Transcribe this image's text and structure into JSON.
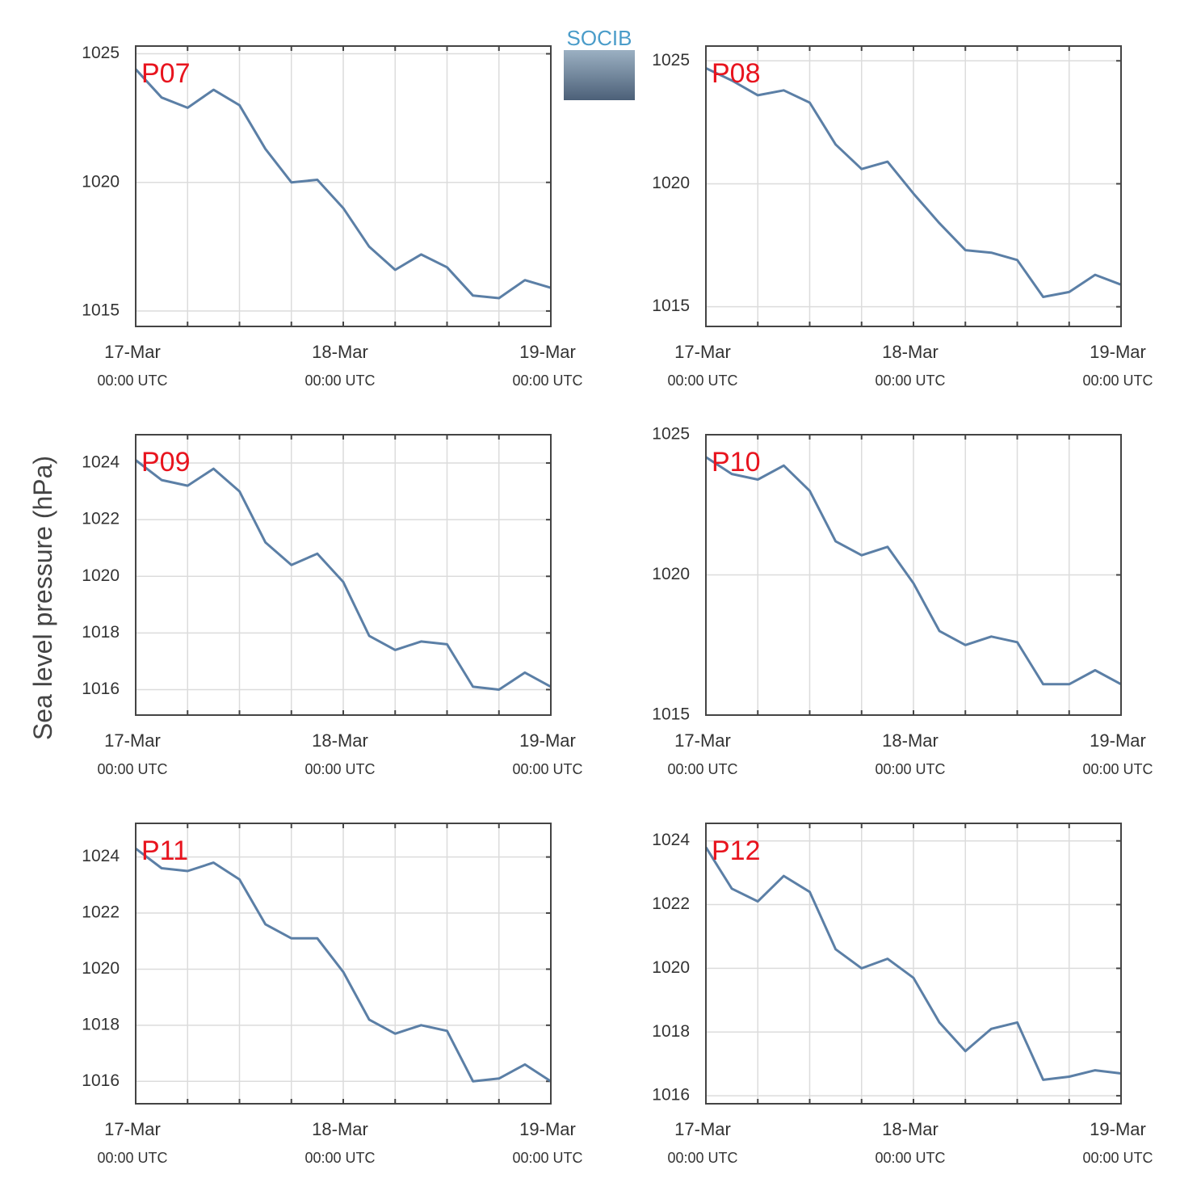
{
  "ylabel": "Sea level pressure (hPa)",
  "logo": "SOCIB",
  "chart_data": [
    {
      "type": "line",
      "title": "P07",
      "color": "#5b7fa6",
      "x": [
        "17-Mar 00:00",
        "17-Mar 03:00",
        "17-Mar 06:00",
        "17-Mar 09:00",
        "17-Mar 12:00",
        "17-Mar 15:00",
        "17-Mar 18:00",
        "17-Mar 21:00",
        "18-Mar 00:00",
        "18-Mar 03:00",
        "18-Mar 06:00",
        "18-Mar 09:00",
        "18-Mar 12:00",
        "18-Mar 15:00",
        "18-Mar 18:00",
        "18-Mar 21:00",
        "19-Mar 00:00"
      ],
      "values": [
        1024.4,
        1023.3,
        1022.9,
        1023.6,
        1023.0,
        1021.3,
        1020.0,
        1020.1,
        1019.0,
        1017.5,
        1016.6,
        1017.2,
        1016.7,
        1015.6,
        1015.5,
        1016.2,
        1015.9
      ],
      "xlim": [
        "17-Mar 00:00",
        "19-Mar 00:00"
      ],
      "xticks": [
        {
          "value": "17-Mar 00:00",
          "label": "17-Mar\n00:00 UTC"
        },
        {
          "value": "17-Mar 06:00",
          "label": null
        },
        {
          "value": "17-Mar 12:00",
          "label": null
        },
        {
          "value": "17-Mar 18:00",
          "label": null
        },
        {
          "value": "18-Mar 00:00",
          "label": "18-Mar\n00:00 UTC"
        },
        {
          "value": "18-Mar 06:00",
          "label": null
        },
        {
          "value": "18-Mar 12:00",
          "label": null
        },
        {
          "value": "18-Mar 18:00",
          "label": null
        },
        {
          "value": "19-Mar 00:00",
          "label": "19-Mar\n00:00 UTC"
        }
      ],
      "ylim": [
        1014.4,
        1025.3
      ],
      "yticks": [
        1015,
        1020,
        1025
      ],
      "grid": true
    },
    {
      "type": "line",
      "title": "P08",
      "color": "#5b7fa6",
      "x": [
        "17-Mar 00:00",
        "17-Mar 03:00",
        "17-Mar 06:00",
        "17-Mar 09:00",
        "17-Mar 12:00",
        "17-Mar 15:00",
        "17-Mar 18:00",
        "17-Mar 21:00",
        "18-Mar 00:00",
        "18-Mar 03:00",
        "18-Mar 06:00",
        "18-Mar 09:00",
        "18-Mar 12:00",
        "18-Mar 15:00",
        "18-Mar 18:00",
        "18-Mar 21:00",
        "19-Mar 00:00"
      ],
      "values": [
        1024.7,
        1024.2,
        1023.6,
        1023.8,
        1023.3,
        1021.6,
        1020.6,
        1020.9,
        1019.6,
        1018.4,
        1017.3,
        1017.2,
        1016.9,
        1015.4,
        1015.6,
        1016.3,
        1015.9
      ],
      "xlim": [
        "17-Mar 00:00",
        "19-Mar 00:00"
      ],
      "xticks": [
        {
          "value": "17-Mar 00:00",
          "label": "17-Mar\n00:00 UTC"
        },
        {
          "value": "17-Mar 06:00",
          "label": null
        },
        {
          "value": "17-Mar 12:00",
          "label": null
        },
        {
          "value": "17-Mar 18:00",
          "label": null
        },
        {
          "value": "18-Mar 00:00",
          "label": "18-Mar\n00:00 UTC"
        },
        {
          "value": "18-Mar 06:00",
          "label": null
        },
        {
          "value": "18-Mar 12:00",
          "label": null
        },
        {
          "value": "18-Mar 18:00",
          "label": null
        },
        {
          "value": "19-Mar 00:00",
          "label": "19-Mar\n00:00 UTC"
        }
      ],
      "ylim": [
        1014.2,
        1025.6
      ],
      "yticks": [
        1015,
        1020,
        1025
      ],
      "grid": true
    },
    {
      "type": "line",
      "title": "P09",
      "color": "#5b7fa6",
      "x": [
        "17-Mar 00:00",
        "17-Mar 03:00",
        "17-Mar 06:00",
        "17-Mar 09:00",
        "17-Mar 12:00",
        "17-Mar 15:00",
        "17-Mar 18:00",
        "17-Mar 21:00",
        "18-Mar 00:00",
        "18-Mar 03:00",
        "18-Mar 06:00",
        "18-Mar 09:00",
        "18-Mar 12:00",
        "18-Mar 15:00",
        "18-Mar 18:00",
        "18-Mar 21:00",
        "19-Mar 00:00"
      ],
      "values": [
        1024.1,
        1023.4,
        1023.2,
        1023.8,
        1023.0,
        1021.2,
        1020.4,
        1020.8,
        1019.8,
        1017.9,
        1017.4,
        1017.7,
        1017.6,
        1016.1,
        1016.0,
        1016.6,
        1016.1
      ],
      "xlim": [
        "17-Mar 00:00",
        "19-Mar 00:00"
      ],
      "xticks": [
        {
          "value": "17-Mar 00:00",
          "label": "17-Mar\n00:00 UTC"
        },
        {
          "value": "17-Mar 06:00",
          "label": null
        },
        {
          "value": "17-Mar 12:00",
          "label": null
        },
        {
          "value": "17-Mar 18:00",
          "label": null
        },
        {
          "value": "18-Mar 00:00",
          "label": "18-Mar\n00:00 UTC"
        },
        {
          "value": "18-Mar 06:00",
          "label": null
        },
        {
          "value": "18-Mar 12:00",
          "label": null
        },
        {
          "value": "18-Mar 18:00",
          "label": null
        },
        {
          "value": "19-Mar 00:00",
          "label": "19-Mar\n00:00 UTC"
        }
      ],
      "ylim": [
        1015.1,
        1025.0
      ],
      "yticks": [
        1016,
        1018,
        1020,
        1022,
        1024
      ],
      "grid": true
    },
    {
      "type": "line",
      "title": "P10",
      "color": "#5b7fa6",
      "x": [
        "17-Mar 00:00",
        "17-Mar 03:00",
        "17-Mar 06:00",
        "17-Mar 09:00",
        "17-Mar 12:00",
        "17-Mar 15:00",
        "17-Mar 18:00",
        "17-Mar 21:00",
        "18-Mar 00:00",
        "18-Mar 03:00",
        "18-Mar 06:00",
        "18-Mar 09:00",
        "18-Mar 12:00",
        "18-Mar 15:00",
        "18-Mar 18:00",
        "18-Mar 21:00",
        "19-Mar 00:00"
      ],
      "values": [
        1024.2,
        1023.6,
        1023.4,
        1023.9,
        1023.0,
        1021.2,
        1020.7,
        1021.0,
        1019.7,
        1018.0,
        1017.5,
        1017.8,
        1017.6,
        1016.1,
        1016.1,
        1016.6,
        1016.1
      ],
      "xlim": [
        "17-Mar 00:00",
        "19-Mar 00:00"
      ],
      "xticks": [
        {
          "value": "17-Mar 00:00",
          "label": "17-Mar\n00:00 UTC"
        },
        {
          "value": "17-Mar 06:00",
          "label": null
        },
        {
          "value": "17-Mar 12:00",
          "label": null
        },
        {
          "value": "17-Mar 18:00",
          "label": null
        },
        {
          "value": "18-Mar 00:00",
          "label": "18-Mar\n00:00 UTC"
        },
        {
          "value": "18-Mar 06:00",
          "label": null
        },
        {
          "value": "18-Mar 12:00",
          "label": null
        },
        {
          "value": "18-Mar 18:00",
          "label": null
        },
        {
          "value": "19-Mar 00:00",
          "label": "19-Mar\n00:00 UTC"
        }
      ],
      "ylim": [
        1015,
        1025
      ],
      "yticks": [
        1015,
        1020,
        1025
      ],
      "grid": true
    },
    {
      "type": "line",
      "title": "P11",
      "color": "#5b7fa6",
      "x": [
        "17-Mar 00:00",
        "17-Mar 03:00",
        "17-Mar 06:00",
        "17-Mar 09:00",
        "17-Mar 12:00",
        "17-Mar 15:00",
        "17-Mar 18:00",
        "17-Mar 21:00",
        "18-Mar 00:00",
        "18-Mar 03:00",
        "18-Mar 06:00",
        "18-Mar 09:00",
        "18-Mar 12:00",
        "18-Mar 15:00",
        "18-Mar 18:00",
        "18-Mar 21:00",
        "19-Mar 00:00"
      ],
      "values": [
        1024.3,
        1023.6,
        1023.5,
        1023.8,
        1023.2,
        1021.6,
        1021.1,
        1021.1,
        1019.9,
        1018.2,
        1017.7,
        1018.0,
        1017.8,
        1016.0,
        1016.1,
        1016.6,
        1016.0
      ],
      "xlim": [
        "17-Mar 00:00",
        "19-Mar 00:00"
      ],
      "xticks": [
        {
          "value": "17-Mar 00:00",
          "label": "17-Mar\n00:00 UTC"
        },
        {
          "value": "17-Mar 06:00",
          "label": null
        },
        {
          "value": "17-Mar 12:00",
          "label": null
        },
        {
          "value": "17-Mar 18:00",
          "label": null
        },
        {
          "value": "18-Mar 00:00",
          "label": "18-Mar\n00:00 UTC"
        },
        {
          "value": "18-Mar 06:00",
          "label": null
        },
        {
          "value": "18-Mar 12:00",
          "label": null
        },
        {
          "value": "18-Mar 18:00",
          "label": null
        },
        {
          "value": "19-Mar 00:00",
          "label": "19-Mar\n00:00 UTC"
        }
      ],
      "ylim": [
        1015.2,
        1025.2
      ],
      "yticks": [
        1016,
        1018,
        1020,
        1022,
        1024
      ],
      "grid": true
    },
    {
      "type": "line",
      "title": "P12",
      "color": "#5b7fa6",
      "x": [
        "17-Mar 00:00",
        "17-Mar 03:00",
        "17-Mar 06:00",
        "17-Mar 09:00",
        "17-Mar 12:00",
        "17-Mar 15:00",
        "17-Mar 18:00",
        "17-Mar 21:00",
        "18-Mar 00:00",
        "18-Mar 03:00",
        "18-Mar 06:00",
        "18-Mar 09:00",
        "18-Mar 12:00",
        "18-Mar 15:00",
        "18-Mar 18:00",
        "18-Mar 21:00",
        "19-Mar 00:00"
      ],
      "values": [
        1023.8,
        1022.5,
        1022.1,
        1022.9,
        1022.4,
        1020.6,
        1020.0,
        1020.3,
        1019.7,
        1018.3,
        1017.4,
        1018.1,
        1018.3,
        1016.5,
        1016.6,
        1016.8,
        1016.7
      ],
      "xlim": [
        "17-Mar 00:00",
        "19-Mar 00:00"
      ],
      "xticks": [
        {
          "value": "17-Mar 00:00",
          "label": "17-Mar\n00:00 UTC"
        },
        {
          "value": "17-Mar 06:00",
          "label": null
        },
        {
          "value": "17-Mar 12:00",
          "label": null
        },
        {
          "value": "17-Mar 18:00",
          "label": null
        },
        {
          "value": "18-Mar 00:00",
          "label": "18-Mar\n00:00 UTC"
        },
        {
          "value": "18-Mar 06:00",
          "label": null
        },
        {
          "value": "18-Mar 12:00",
          "label": null
        },
        {
          "value": "18-Mar 18:00",
          "label": null
        },
        {
          "value": "19-Mar 00:00",
          "label": "19-Mar\n00:00 UTC"
        }
      ],
      "ylim": [
        1015.75,
        1024.55
      ],
      "yticks": [
        1016,
        1018,
        1020,
        1022,
        1024
      ],
      "grid": true
    }
  ]
}
